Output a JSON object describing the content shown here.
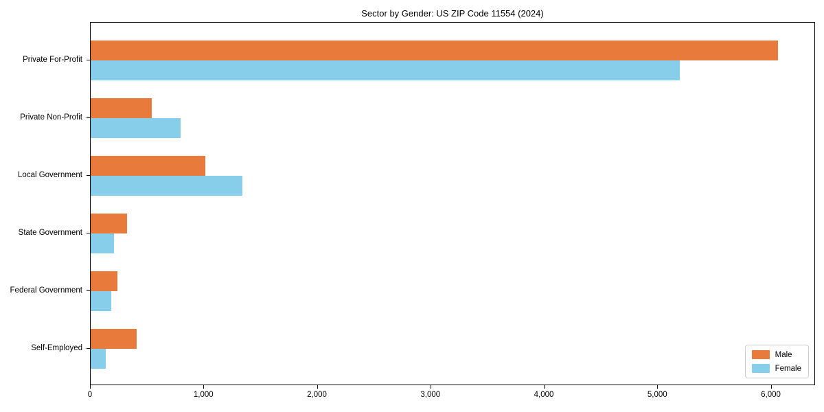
{
  "chart_data": {
    "type": "bar",
    "orientation": "horizontal",
    "title": "Sector by Gender: US ZIP Code 11554 (2024)",
    "xlabel": "",
    "ylabel": "",
    "categories": [
      "Private For-Profit",
      "Private Non-Profit",
      "Local Government",
      "State Government",
      "Federal Government",
      "Self-Employed"
    ],
    "series": [
      {
        "name": "Male",
        "color": "#e87a3c",
        "values": [
          6070,
          540,
          1010,
          320,
          235,
          405
        ]
      },
      {
        "name": "Female",
        "color": "#87ceeb",
        "values": [
          5200,
          795,
          1340,
          205,
          180,
          135
        ]
      }
    ],
    "xlim": [
      0,
      6390
    ],
    "xticks": [
      0,
      1000,
      2000,
      3000,
      4000,
      5000,
      6000
    ],
    "xtick_labels": [
      "0",
      "1,000",
      "2,000",
      "3,000",
      "4,000",
      "5,000",
      "6,000"
    ],
    "grid": false,
    "legend": {
      "position": "lower right",
      "entries": [
        "Male",
        "Female"
      ]
    },
    "frame_color": "#000000",
    "background_color": "#ffffff"
  }
}
